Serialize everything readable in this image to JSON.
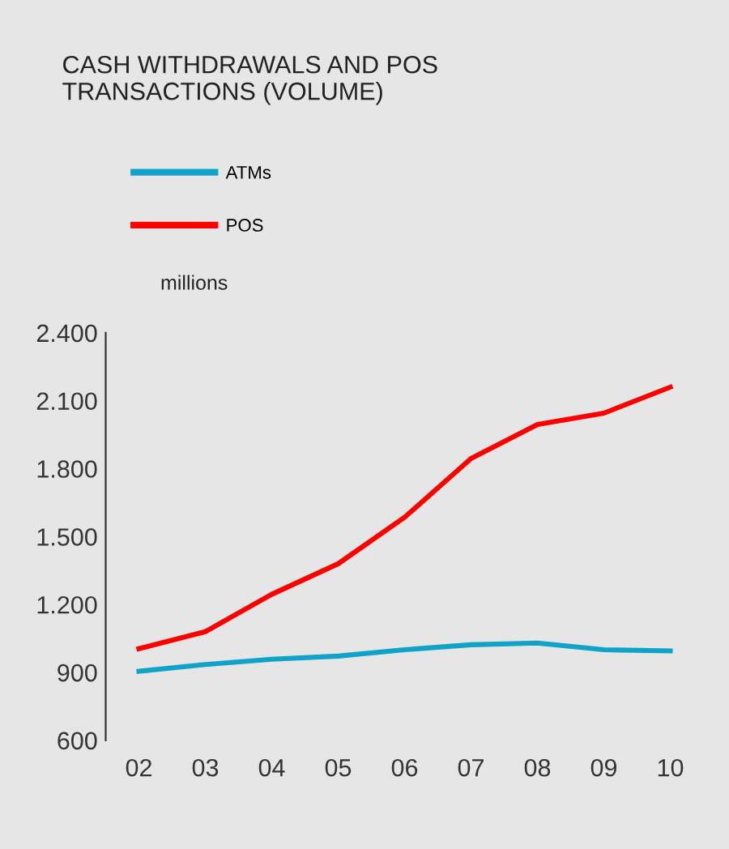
{
  "chart_data": {
    "type": "line",
    "title": "CASH WITHDRAWALS AND POS\nTRANSACTIONS (VOLUME)",
    "ylabel": "millions",
    "categories": [
      "02",
      "03",
      "04",
      "05",
      "06",
      "07",
      "08",
      "09",
      "10"
    ],
    "series": [
      {
        "name": "ATMs",
        "color": "#0fa3c8",
        "values": [
          905,
          935,
          958,
          972,
          1000,
          1022,
          1030,
          1000,
          995
        ]
      },
      {
        "name": "POS",
        "color": "#ff0000",
        "values": [
          1005,
          1080,
          1245,
          1380,
          1585,
          1845,
          1995,
          2045,
          2160
        ]
      }
    ],
    "ylim": [
      600,
      2400
    ],
    "yticks": [
      {
        "value": 600,
        "label": "600"
      },
      {
        "value": 900,
        "label": "900"
      },
      {
        "value": 1200,
        "label": "1.200"
      },
      {
        "value": 1500,
        "label": "1.500"
      },
      {
        "value": 1800,
        "label": "1.800"
      },
      {
        "value": 2100,
        "label": "2.100"
      },
      {
        "value": 2400,
        "label": "2.400"
      }
    ],
    "grid": false,
    "legend": "top left",
    "marker": "none",
    "line_style": "solid"
  }
}
